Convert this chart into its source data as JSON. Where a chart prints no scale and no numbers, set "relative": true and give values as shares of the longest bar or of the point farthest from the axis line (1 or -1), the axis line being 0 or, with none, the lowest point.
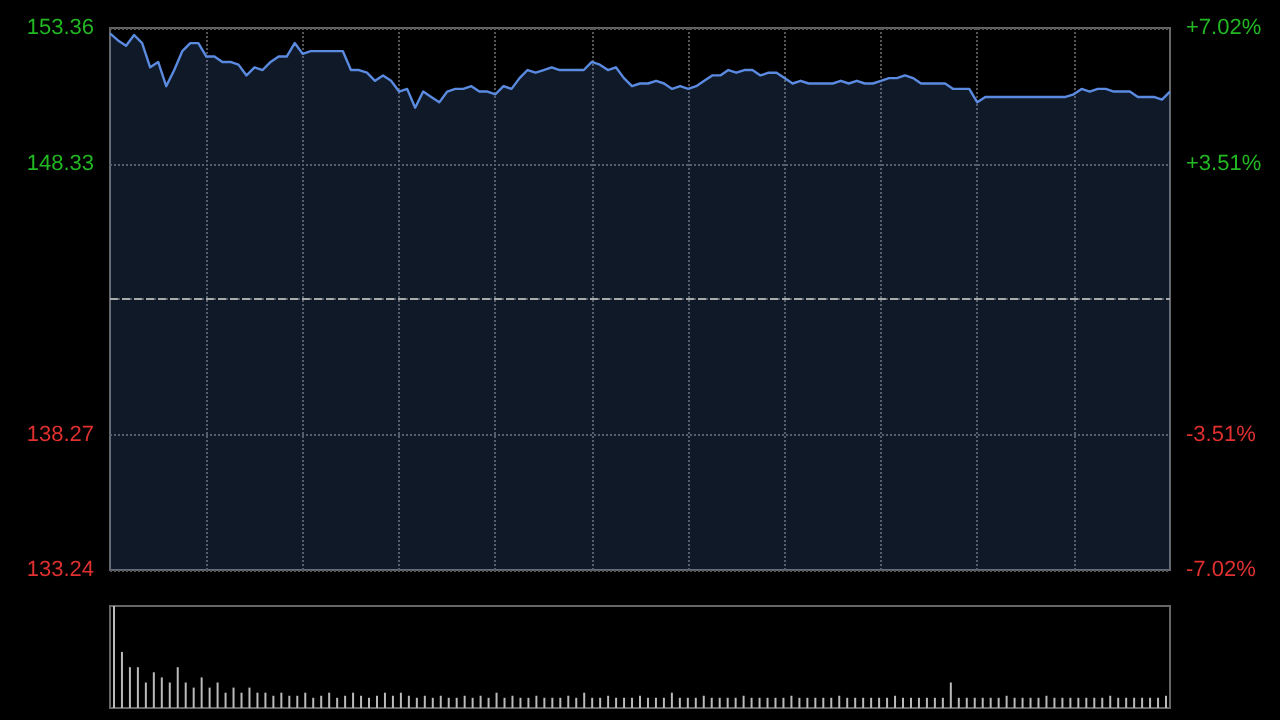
{
  "chart_data": [
    {
      "type": "area",
      "categories": [
        null,
        null,
        null,
        null,
        null,
        null,
        null,
        null,
        null,
        null,
        null,
        null,
        null,
        null,
        null,
        null,
        null,
        null,
        null,
        null,
        null,
        null,
        null,
        null,
        null,
        null,
        null,
        null,
        null,
        null,
        null,
        null,
        null,
        null,
        null,
        null,
        null,
        null,
        null,
        null,
        null,
        null,
        null,
        null,
        null,
        null,
        null,
        null,
        null,
        null,
        null,
        null,
        null,
        null,
        null,
        null,
        null,
        null,
        null,
        null,
        null,
        null,
        null,
        null,
        null,
        null,
        null,
        null,
        null,
        null,
        null,
        null,
        null,
        null,
        null,
        null,
        null,
        null,
        null,
        null,
        null,
        null,
        null,
        null,
        null,
        null,
        null,
        null,
        null,
        null,
        null,
        null,
        null,
        null,
        null,
        null,
        null,
        null,
        null,
        null,
        null,
        null,
        null,
        null,
        null,
        null,
        null,
        null,
        null,
        null,
        null,
        null,
        null,
        null,
        null,
        null,
        null,
        null,
        null,
        null,
        null,
        null,
        null,
        null,
        null,
        null,
        null,
        null,
        null,
        null,
        null,
        null,
        null
      ],
      "series": [
        {
          "color": "#5b8be0",
          "values": [
            153.16,
            152.9,
            152.7,
            153.1,
            152.8,
            151.9,
            152.1,
            151.2,
            151.8,
            152.5,
            152.8,
            152.8,
            152.3,
            152.3,
            152.1,
            152.1,
            152.0,
            151.6,
            151.9,
            151.8,
            152.1,
            152.3,
            152.3,
            152.8,
            152.4,
            152.5,
            152.5,
            152.5,
            152.5,
            152.5,
            151.8,
            151.8,
            151.7,
            151.4,
            151.6,
            151.4,
            151.0,
            151.1,
            150.4,
            151.0,
            150.8,
            150.6,
            151.0,
            151.1,
            151.1,
            151.2,
            151.0,
            151.0,
            150.9,
            151.2,
            151.1,
            151.5,
            151.8,
            151.7,
            151.8,
            151.9,
            151.8,
            151.8,
            151.8,
            151.8,
            152.1,
            152.0,
            151.8,
            151.9,
            151.5,
            151.2,
            151.3,
            151.3,
            151.4,
            151.3,
            151.1,
            151.2,
            151.1,
            151.2,
            151.4,
            151.6,
            151.6,
            151.8,
            151.7,
            151.8,
            151.8,
            151.6,
            151.7,
            151.7,
            151.5,
            151.3,
            151.4,
            151.3,
            151.3,
            151.3,
            151.3,
            151.4,
            151.3,
            151.4,
            151.3,
            151.3,
            151.4,
            151.5,
            151.5,
            151.6,
            151.5,
            151.3,
            151.3,
            151.3,
            151.3,
            151.1,
            151.1,
            151.1,
            150.6,
            150.8,
            150.8,
            150.8,
            150.8,
            150.8,
            150.8,
            150.8,
            150.8,
            150.8,
            150.8,
            150.8,
            150.9,
            151.1,
            151.0,
            151.1,
            151.1,
            151.0,
            151.0,
            151.0,
            150.8,
            150.8,
            150.8,
            150.7,
            151.0
          ]
        }
      ],
      "ylim": [
        133.24,
        153.36
      ],
      "yticks": [
        133.24,
        138.27,
        {
          "value": 143.3,
          "label": null
        },
        148.33,
        153.36
      ],
      "y2lim": [
        -7.02,
        7.02
      ],
      "y2ticks": [
        {
          "value": -7.02,
          "label": "-7.02%"
        },
        {
          "value": -3.51,
          "label": "-3.51%"
        },
        {
          "value": 0,
          "label": null
        },
        {
          "value": 3.51,
          "label": "+3.51%"
        },
        {
          "value": 7.02,
          "label": "+7.02%"
        }
      ],
      "ref_lines": [
        {
          "axis": "y",
          "value": 143.3,
          "color": "#aaaaaa",
          "line_style": "dashed"
        }
      ],
      "grid": true,
      "tick_labels": "y"
    },
    {
      "type": "bar",
      "relative": true,
      "categories": [
        null,
        null,
        null,
        null,
        null,
        null,
        null,
        null,
        null,
        null,
        null,
        null,
        null,
        null,
        null,
        null,
        null,
        null,
        null,
        null,
        null,
        null,
        null,
        null,
        null,
        null,
        null,
        null,
        null,
        null,
        null,
        null,
        null,
        null,
        null,
        null,
        null,
        null,
        null,
        null,
        null,
        null,
        null,
        null,
        null,
        null,
        null,
        null,
        null,
        null,
        null,
        null,
        null,
        null,
        null,
        null,
        null,
        null,
        null,
        null,
        null,
        null,
        null,
        null,
        null,
        null,
        null,
        null,
        null,
        null,
        null,
        null,
        null,
        null,
        null,
        null,
        null,
        null,
        null,
        null,
        null,
        null,
        null,
        null,
        null,
        null,
        null,
        null,
        null,
        null,
        null,
        null,
        null,
        null,
        null,
        null,
        null,
        null,
        null,
        null,
        null,
        null,
        null,
        null,
        null,
        null,
        null,
        null,
        null,
        null,
        null,
        null,
        null,
        null,
        null,
        null,
        null,
        null,
        null,
        null,
        null,
        null,
        null,
        null,
        null,
        null,
        null,
        null,
        null,
        null,
        null,
        null,
        null
      ],
      "series": [
        {
          "color": "#bbbbbb",
          "values": [
            1,
            0.55,
            0.4,
            0.4,
            0.25,
            0.35,
            0.3,
            0.25,
            0.4,
            0.25,
            0.2,
            0.3,
            0.2,
            0.25,
            0.15,
            0.2,
            0.15,
            0.2,
            0.15,
            0.15,
            0.12,
            0.15,
            0.12,
            0.12,
            0.15,
            0.1,
            0.12,
            0.15,
            0.1,
            0.12,
            0.15,
            0.12,
            0.1,
            0.12,
            0.15,
            0.12,
            0.15,
            0.12,
            0.1,
            0.12,
            0.1,
            0.12,
            0.1,
            0.1,
            0.12,
            0.1,
            0.12,
            0.1,
            0.15,
            0.1,
            0.12,
            0.1,
            0.1,
            0.12,
            0.1,
            0.1,
            0.1,
            0.12,
            0.1,
            0.15,
            0.1,
            0.1,
            0.12,
            0.1,
            0.1,
            0.1,
            0.12,
            0.1,
            0.1,
            0.1,
            0.15,
            0.1,
            0.1,
            0.1,
            0.12,
            0.1,
            0.1,
            0.1,
            0.1,
            0.12,
            0.1,
            0.1,
            0.1,
            0.1,
            0.1,
            0.12,
            0.1,
            0.1,
            0.1,
            0.1,
            0.1,
            0.12,
            0.1,
            0.1,
            0.1,
            0.1,
            0.1,
            0.1,
            0.12,
            0.1,
            0.1,
            0.1,
            0.1,
            0.1,
            0.1,
            0.25,
            0.1,
            0.1,
            0.1,
            0.1,
            0.1,
            0.1,
            0.12,
            0.1,
            0.1,
            0.1,
            0.1,
            0.12,
            0.1,
            0.1,
            0.1,
            0.1,
            0.1,
            0.1,
            0.1,
            0.12,
            0.1,
            0.1,
            0.1,
            0.1,
            0.1,
            0.1,
            0.12
          ]
        }
      ],
      "grid": false,
      "tick_labels": false
    }
  ]
}
